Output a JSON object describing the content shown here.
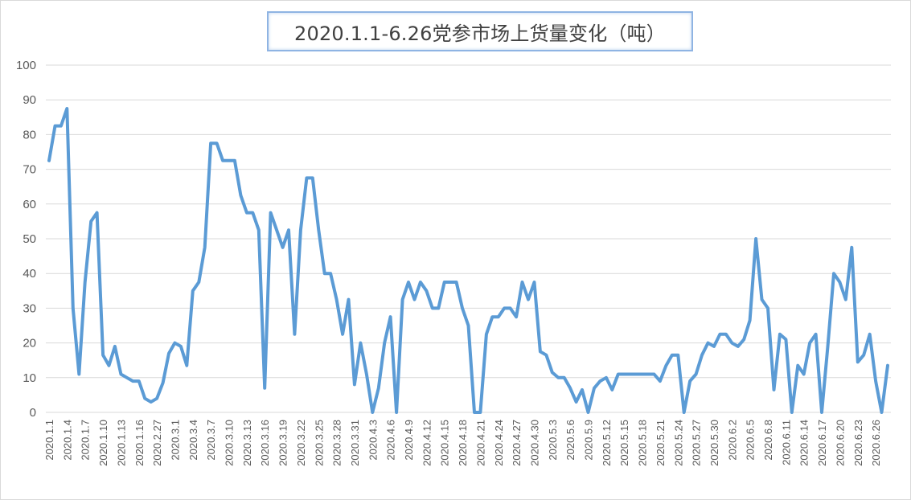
{
  "chart_data": {
    "type": "line",
    "title": "2020.1.1-6.26党参市场上货量变化（吨）",
    "ylim": [
      0,
      100
    ],
    "yticks": [
      0,
      10,
      20,
      30,
      40,
      50,
      60,
      70,
      80,
      90,
      100
    ],
    "grid": true,
    "xtick_labels": [
      "2020.1.1",
      "2020.1.4",
      "2020.1.7",
      "2020.1.10",
      "2020.1.13",
      "2020.1.16",
      "2020.2.27",
      "2020.3.1",
      "2020.3.4",
      "2020.3.7",
      "2020.3.10",
      "2020.3.13",
      "2020.3.16",
      "2020.3.19",
      "2020.3.22",
      "2020.3.25",
      "2020.3.28",
      "2020.3.31",
      "2020.4.3",
      "2020.4.6",
      "2020.4.9",
      "2020.4.12",
      "2020.4.15",
      "2020.4.18",
      "2020.4.21",
      "2020.4.24",
      "2020.4.27",
      "2020.4.30",
      "2020.5.3",
      "2020.5.6",
      "2020.5.9",
      "2020.5.12",
      "2020.5.15",
      "2020.5.18",
      "2020.5.21",
      "2020.5.24",
      "2020.5.27",
      "2020.5.30",
      "2020.6.2",
      "2020.6.5",
      "2020.6.8",
      "2020.6.11",
      "2020.6.14",
      "2020.6.17",
      "2020.6.20",
      "2020.6.23",
      "2020.6.26"
    ],
    "series": [
      {
        "color": "#5b9bd5",
        "values": [
          72.5,
          82.5,
          82.5,
          87.5,
          30,
          11,
          37.5,
          55,
          57.5,
          16.5,
          13.5,
          19,
          11,
          10,
          9,
          9,
          4,
          3,
          4,
          8.5,
          17,
          20,
          19,
          13.5,
          35,
          37.5,
          47.5,
          77.5,
          77.5,
          72.5,
          72.5,
          72.5,
          62.5,
          57.5,
          57.5,
          52.5,
          7,
          57.5,
          52.5,
          47.5,
          52.5,
          22.5,
          52.5,
          67.5,
          67.5,
          52.5,
          40,
          40,
          32.5,
          22.5,
          32.5,
          8,
          20,
          11,
          0,
          7,
          20,
          27.5,
          0,
          32.5,
          37.5,
          32.5,
          37.5,
          35,
          30,
          30,
          37.5,
          37.5,
          37.5,
          30,
          25,
          0,
          0,
          22.5,
          27.5,
          27.5,
          30,
          30,
          27.5,
          37.5,
          32.5,
          37.5,
          17.5,
          16.5,
          11.5,
          10,
          10,
          7,
          3,
          6.5,
          0,
          7,
          9,
          10,
          6.5,
          11,
          11,
          11,
          11,
          11,
          11,
          11,
          9,
          13.5,
          16.5,
          16.5,
          0,
          9,
          11,
          16.5,
          20,
          19,
          22.5,
          22.5,
          20,
          19,
          21,
          26.5,
          50,
          32.5,
          30,
          6.5,
          22.5,
          21,
          0,
          13.5,
          11,
          20,
          22.5,
          0,
          19,
          40,
          37.5,
          32.5,
          47.5,
          14.5,
          16.5,
          22.5,
          9,
          0,
          13.5
        ]
      }
    ]
  }
}
